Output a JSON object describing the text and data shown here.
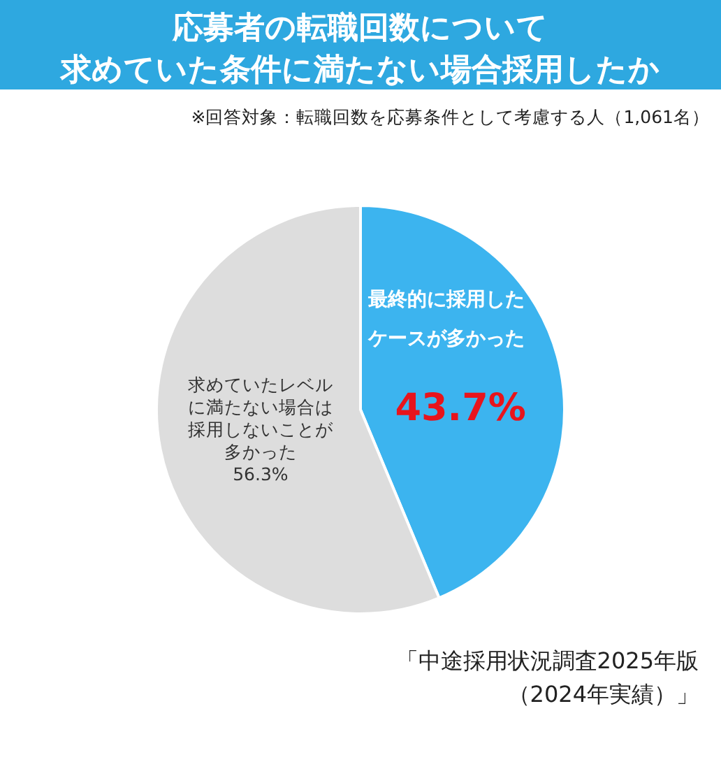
{
  "chart_data": {
    "type": "pie",
    "title": "応募者の転職回数について求めていた条件に満たない場合採用したか",
    "subtitle": "※回答対象：転職回数を応募条件として考慮する人（1,061名）",
    "categories": [
      "最終的に採用したケースが多かった",
      "求めていたレベルに満たない場合は採用しないことが多かった"
    ],
    "values": [
      43.7,
      56.3
    ],
    "colors": [
      "#3cb4ef",
      "#dddddd"
    ],
    "value_labels": [
      "43.7%",
      "56.3%"
    ],
    "annotations": [
      "「中途採用状況調査2025年版（2024年実績）」"
    ]
  }
}
